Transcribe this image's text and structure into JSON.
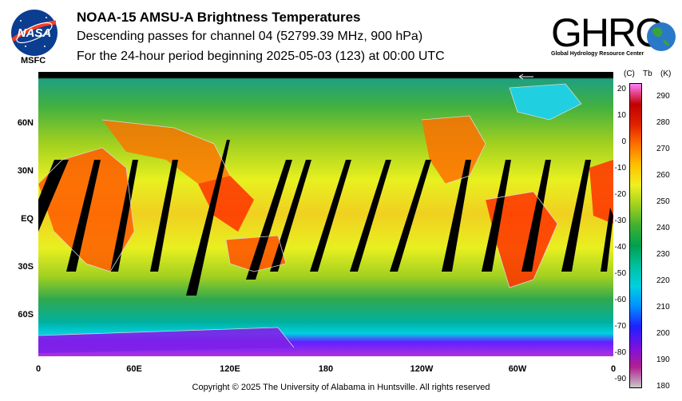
{
  "header": {
    "title": "NOAA-15 AMSU-A Brightness Temperatures",
    "subtitle_line1": "Descending passes for channel 04 (52799.39 MHz, 900 hPa)",
    "subtitle_line2": "For the 24-hour period beginning 2025-05-03 (123) at 00:00 UTC"
  },
  "logos": {
    "nasa_label": "MSFC",
    "nasa_wordmark": "NASA",
    "ghrc_wordmark": "GHRC",
    "ghrc_full": "Global Hydrology Resource Center"
  },
  "map": {
    "lat_labels": [
      "60N",
      "30N",
      "EQ",
      "30S",
      "60S"
    ],
    "lon_labels": [
      "0",
      "60E",
      "120E",
      "180",
      "120W",
      "60W",
      "0"
    ]
  },
  "colorbar": {
    "head_c": "(C)",
    "head_tb": "Tb",
    "head_k": "(K)",
    "celsius_ticks": [
      "20",
      "10",
      "0",
      "-10",
      "-20",
      "-30",
      "-40",
      "-50",
      "-60",
      "-70",
      "-80",
      "-90"
    ],
    "kelvin_ticks": [
      "290",
      "280",
      "270",
      "260",
      "250",
      "240",
      "230",
      "220",
      "210",
      "200",
      "190",
      "180"
    ],
    "range_k": [
      180,
      295
    ],
    "colors": [
      "#c8c8c8",
      "#b02090",
      "#7a10e0",
      "#2020ff",
      "#0090ff",
      "#00d0e0",
      "#00c0a0",
      "#00a050",
      "#40b030",
      "#a0d020",
      "#f0f020",
      "#ffc000",
      "#ff7000",
      "#e02000",
      "#c00000",
      "#ff80ff"
    ]
  },
  "footer": {
    "copyright": "Copyright © 2025 The University of Alabama in Huntsville.  All rights reserved"
  }
}
